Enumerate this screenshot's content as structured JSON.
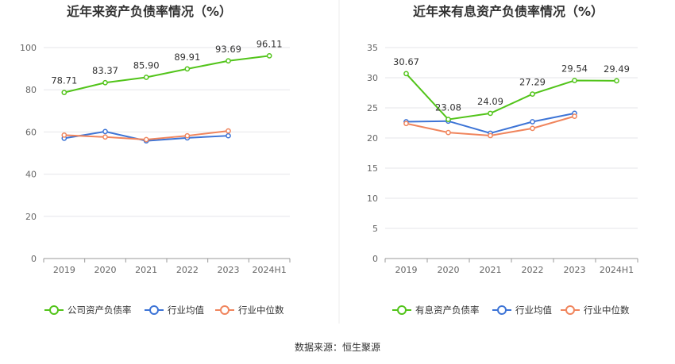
{
  "source_text": "数据来源：恒生聚源",
  "chart_data": [
    {
      "type": "line",
      "title": "近年来资产负债率情况（%）",
      "categories": [
        "2019",
        "2020",
        "2021",
        "2022",
        "2023",
        "2024H1"
      ],
      "ylim": [
        0,
        100
      ],
      "yticks": [
        0,
        20,
        40,
        60,
        80,
        100
      ],
      "grid": true,
      "legend_position": "bottom",
      "series": [
        {
          "name": "公司资产负债率",
          "color": "#52c41a",
          "values": [
            78.71,
            83.37,
            85.9,
            89.91,
            93.69,
            96.11
          ],
          "labels": [
            "78.71",
            "83.37",
            "85.90",
            "89.91",
            "93.69",
            "96.11"
          ]
        },
        {
          "name": "行业均值",
          "color": "#3d74d6",
          "values": [
            57.0,
            60.2,
            55.8,
            57.2,
            58.2,
            null
          ]
        },
        {
          "name": "行业中位数",
          "color": "#f0855d",
          "values": [
            58.5,
            57.6,
            56.4,
            58.2,
            60.5,
            null
          ]
        }
      ]
    },
    {
      "type": "line",
      "title": "近年来有息资产负债率情况（%）",
      "categories": [
        "2019",
        "2020",
        "2021",
        "2022",
        "2023",
        "2024H1"
      ],
      "ylim": [
        0,
        35
      ],
      "yticks": [
        0,
        5,
        10,
        15,
        20,
        25,
        30,
        35
      ],
      "grid": true,
      "legend_position": "bottom",
      "series": [
        {
          "name": "有息资产负债率",
          "color": "#52c41a",
          "values": [
            30.67,
            23.08,
            24.09,
            27.29,
            29.54,
            29.49
          ],
          "labels": [
            "30.67",
            "23.08",
            "24.09",
            "27.29",
            "29.54",
            "29.49"
          ]
        },
        {
          "name": "行业均值",
          "color": "#3d74d6",
          "values": [
            22.7,
            22.8,
            20.8,
            22.7,
            24.1,
            null
          ]
        },
        {
          "name": "行业中位数",
          "color": "#f0855d",
          "values": [
            22.4,
            20.9,
            20.4,
            21.6,
            23.6,
            null
          ]
        }
      ]
    }
  ]
}
